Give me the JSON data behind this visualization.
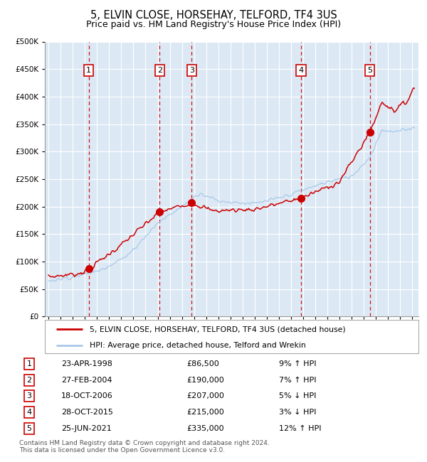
{
  "title": "5, ELVIN CLOSE, HORSEHAY, TELFORD, TF4 3US",
  "subtitle": "Price paid vs. HM Land Registry's House Price Index (HPI)",
  "background_color": "#dce9f5",
  "plot_bg_color": "#dce9f5",
  "grid_color": "#ffffff",
  "title_fontsize": 10.5,
  "subtitle_fontsize": 9,
  "hpi_line_color": "#a8c8e8",
  "price_line_color": "#cc0000",
  "marker_color": "#cc0000",
  "dashed_line_color": "#cc0000",
  "ylim": [
    0,
    500000
  ],
  "yticks": [
    0,
    50000,
    100000,
    150000,
    200000,
    250000,
    300000,
    350000,
    400000,
    450000,
    500000
  ],
  "xlim_start": 1994.7,
  "xlim_end": 2025.5,
  "trans_years": [
    1998.31,
    2004.16,
    2006.8,
    2015.83,
    2021.49
  ],
  "trans_prices": [
    86500,
    190000,
    207000,
    215000,
    335000
  ],
  "trans_labels": [
    1,
    2,
    3,
    4,
    5
  ],
  "legend_label_price": "5, ELVIN CLOSE, HORSEHAY, TELFORD, TF4 3US (detached house)",
  "legend_label_hpi": "HPI: Average price, detached house, Telford and Wrekin",
  "footer": "Contains HM Land Registry data © Crown copyright and database right 2024.\nThis data is licensed under the Open Government Licence v3.0.",
  "table_rows": [
    [
      "1",
      "23-APR-1998",
      "£86,500",
      "9% ↑ HPI"
    ],
    [
      "2",
      "27-FEB-2004",
      "£190,000",
      "7% ↑ HPI"
    ],
    [
      "3",
      "18-OCT-2006",
      "£207,000",
      "5% ↓ HPI"
    ],
    [
      "4",
      "28-OCT-2015",
      "£215,000",
      "3% ↓ HPI"
    ],
    [
      "5",
      "25-JUN-2021",
      "£335,000",
      "12% ↑ HPI"
    ]
  ]
}
